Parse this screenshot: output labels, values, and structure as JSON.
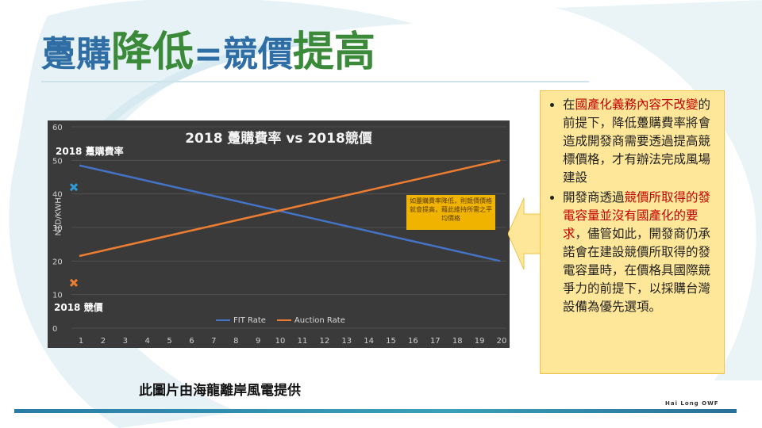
{
  "title": {
    "part1": "躉購",
    "part2": "降低",
    "part3": "=競價",
    "part4": "提高"
  },
  "chart_data": {
    "type": "line",
    "title": "2018 躉購費率 vs 2018競價",
    "ylabel": "NTD/KWH",
    "xlabel": "",
    "x": [
      1,
      2,
      3,
      4,
      5,
      6,
      7,
      8,
      9,
      10,
      11,
      12,
      13,
      14,
      15,
      16,
      17,
      18,
      19,
      20
    ],
    "ylim": [
      0,
      60
    ],
    "yticks": [
      0,
      10,
      20,
      30,
      40,
      50,
      60
    ],
    "series": [
      {
        "name": "FIT Rate",
        "color": "#4472c4",
        "start": 48.5,
        "end": 20
      },
      {
        "name": "Auction Rate",
        "color": "#ed7d31",
        "start": 21.5,
        "end": 50
      }
    ],
    "markers": [
      {
        "label": "2018 躉購費率",
        "x": 0.3,
        "y": 42,
        "color": "#2e9bd8"
      },
      {
        "label": "2018 競價",
        "x": 0.3,
        "y": 13.5,
        "color": "#ed7d31"
      }
    ],
    "annotation": "如躉購費率降低，則競價價格就會提高，藉此維持所需之平均價格",
    "legend_position": "bottom"
  },
  "callout": {
    "b1_prefix": "在",
    "b1_red": "國產化義務內容不改變",
    "b1_rest": "的前提下，降低躉購費率將會造成開發商需要透過提高競標價格，才有辦法完成風場建設",
    "b2_prefix": "開發商透過",
    "b2_red": "競價所取得的發電容量並沒有國產化的要求",
    "b2_rest": "，儘管如此，開發商仍承諾會在建設競價所取得的發電容量時，在價格具國際競爭力的前提下，以採購台灣設備為優先選項。"
  },
  "caption": "此圖片由海龍離岸風電提供",
  "logo": "Hai Long OWF"
}
